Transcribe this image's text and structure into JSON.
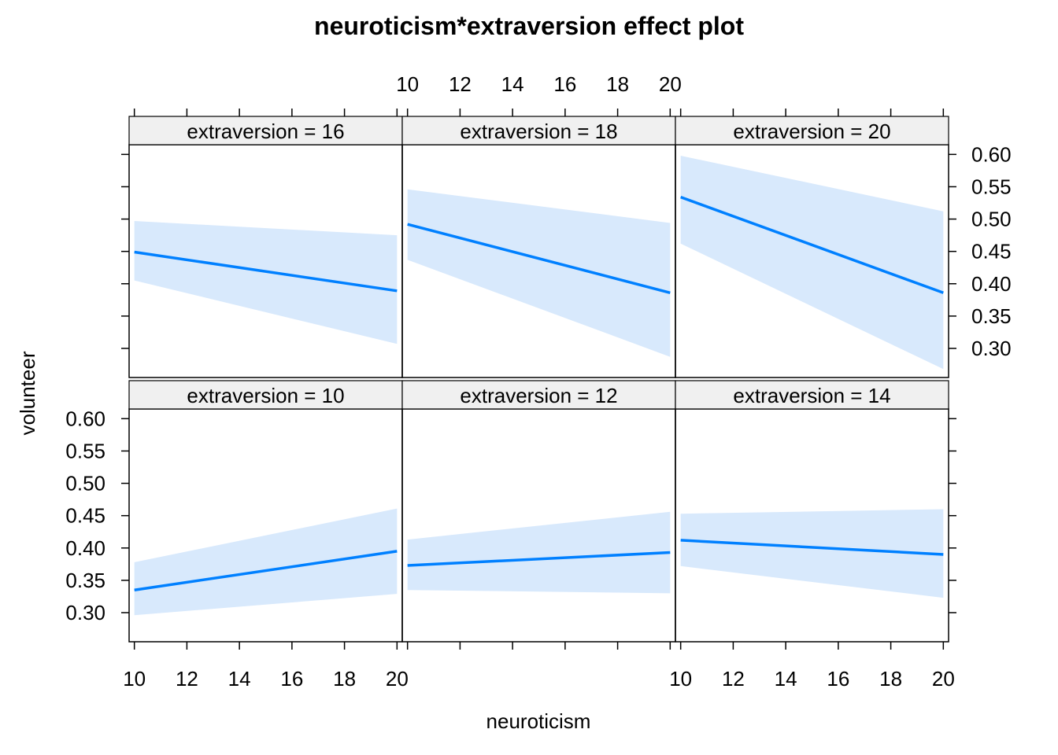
{
  "chart_data": {
    "type": "line",
    "title": "neuroticism*extraversion effect plot",
    "xlabel": "neuroticism",
    "ylabel": "volunteer",
    "xlim": [
      9.8,
      20.2
    ],
    "ylim": [
      0.255,
      0.615
    ],
    "x_ticks": [
      10,
      12,
      14,
      16,
      18,
      20
    ],
    "x_tick_labels": [
      "10",
      "12",
      "14",
      "16",
      "18",
      "20"
    ],
    "y_ticks": [
      0.3,
      0.35,
      0.4,
      0.45,
      0.5,
      0.55,
      0.6
    ],
    "y_tick_labels": [
      "0.30",
      "0.35",
      "0.40",
      "0.45",
      "0.50",
      "0.55",
      "0.60"
    ],
    "grid": false,
    "legend": "none",
    "colors": {
      "line": "#0080ff",
      "band": "#d8e9fc",
      "strip": "#f0f0f0"
    },
    "x": [
      10,
      20
    ],
    "panels": [
      {
        "strip": "extraversion = 16",
        "row": 0,
        "col": 0,
        "fit": [
          0.449,
          0.389
        ],
        "lower": [
          0.405,
          0.307
        ],
        "upper": [
          0.497,
          0.475
        ]
      },
      {
        "strip": "extraversion = 18",
        "row": 0,
        "col": 1,
        "fit": [
          0.492,
          0.386
        ],
        "lower": [
          0.437,
          0.287
        ],
        "upper": [
          0.546,
          0.494
        ]
      },
      {
        "strip": "extraversion = 20",
        "row": 0,
        "col": 2,
        "fit": [
          0.534,
          0.386
        ],
        "lower": [
          0.462,
          0.268
        ],
        "upper": [
          0.598,
          0.512
        ]
      },
      {
        "strip": "extraversion = 10",
        "row": 1,
        "col": 0,
        "fit": [
          0.335,
          0.395
        ],
        "lower": [
          0.296,
          0.329
        ],
        "upper": [
          0.378,
          0.461
        ]
      },
      {
        "strip": "extraversion = 12",
        "row": 1,
        "col": 1,
        "fit": [
          0.373,
          0.393
        ],
        "lower": [
          0.335,
          0.33
        ],
        "upper": [
          0.413,
          0.456
        ]
      },
      {
        "strip": "extraversion = 14",
        "row": 1,
        "col": 2,
        "fit": [
          0.412,
          0.39
        ],
        "lower": [
          0.372,
          0.323
        ],
        "upper": [
          0.453,
          0.46
        ]
      }
    ]
  }
}
